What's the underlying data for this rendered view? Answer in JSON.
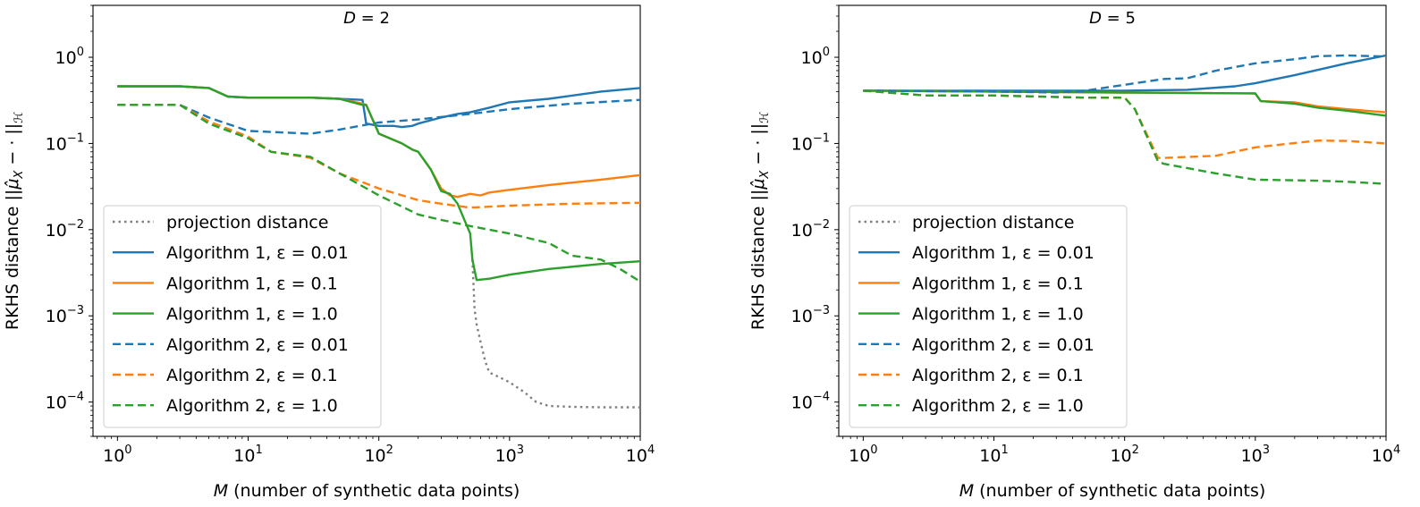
{
  "chart_data": [
    {
      "type": "line",
      "title": "D = 2",
      "title_var": "D",
      "title_value": "2",
      "xlabel": "M (number of synthetic data points)",
      "xlabel_var": "M",
      "xlabel_rest": " (number of synthetic data points)",
      "ylabel": "RKHS distance ||μ̂_X − ·||_ℋ",
      "ylabel_prefix": "RKHS distance ",
      "ylabel_math": "||μ̂",
      "ylabel_sub": "X",
      "ylabel_mid": " − · ||",
      "ylabel_sub2": "ℋ",
      "xscale": "log",
      "yscale": "log",
      "xlim": [
        0.65,
        10000
      ],
      "ylim": [
        4e-05,
        4
      ],
      "xticks": [
        {
          "v": 1,
          "base": "10",
          "exp": "0"
        },
        {
          "v": 10,
          "base": "10",
          "exp": "1"
        },
        {
          "v": 100,
          "base": "10",
          "exp": "2"
        },
        {
          "v": 1000,
          "base": "10",
          "exp": "3"
        },
        {
          "v": 10000,
          "base": "10",
          "exp": "4"
        }
      ],
      "yticks": [
        {
          "v": 0.0001,
          "base": "10",
          "exp": "−4"
        },
        {
          "v": 0.001,
          "base": "10",
          "exp": "−3"
        },
        {
          "v": 0.01,
          "base": "10",
          "exp": "−2"
        },
        {
          "v": 0.1,
          "base": "10",
          "exp": "−1"
        },
        {
          "v": 1,
          "base": "10",
          "exp": "0"
        }
      ],
      "grid": false,
      "legend_position": "lower-left",
      "series": [
        {
          "name": "projection distance",
          "color": "#808080",
          "dash": "dotted",
          "x": [
            520,
            540,
            560,
            600,
            650,
            700,
            800,
            1000,
            1300,
            1600,
            2000,
            3000,
            5000,
            10000
          ],
          "y": [
            0.0045,
            0.0012,
            0.0008,
            0.0005,
            0.0003,
            0.00022,
            0.0002,
            0.00017,
            0.00013,
            0.0001,
            9e-05,
            8.8e-05,
            8.7e-05,
            8.7e-05
          ]
        },
        {
          "name": "Algorithm 1, ε = 0.01",
          "color": "#1f77b4",
          "dash": "solid",
          "x": [
            1,
            3,
            5,
            7,
            10,
            20,
            30,
            50,
            75,
            80,
            100,
            130,
            150,
            180,
            200,
            300,
            400,
            500,
            700,
            1000,
            2000,
            5000,
            10000
          ],
          "y": [
            0.46,
            0.46,
            0.44,
            0.35,
            0.34,
            0.34,
            0.34,
            0.33,
            0.32,
            0.17,
            0.16,
            0.16,
            0.155,
            0.16,
            0.17,
            0.2,
            0.22,
            0.23,
            0.26,
            0.3,
            0.33,
            0.4,
            0.44
          ]
        },
        {
          "name": "Algorithm 1, ε = 0.1",
          "color": "#ff7f0e",
          "dash": "solid",
          "x": [
            1,
            3,
            5,
            7,
            10,
            20,
            30,
            50,
            75,
            80,
            100,
            150,
            180,
            200,
            250,
            300,
            350,
            400,
            500,
            600,
            700,
            1000,
            2000,
            5000,
            10000
          ],
          "y": [
            0.46,
            0.46,
            0.44,
            0.35,
            0.34,
            0.34,
            0.34,
            0.33,
            0.29,
            0.28,
            0.13,
            0.1,
            0.085,
            0.08,
            0.05,
            0.03,
            0.025,
            0.024,
            0.026,
            0.025,
            0.027,
            0.029,
            0.033,
            0.038,
            0.043
          ]
        },
        {
          "name": "Algorithm 1, ε = 1.0",
          "color": "#2ca02c",
          "dash": "solid",
          "x": [
            1,
            3,
            5,
            7,
            10,
            20,
            30,
            50,
            75,
            80,
            100,
            150,
            180,
            200,
            250,
            300,
            350,
            400,
            500,
            520,
            560,
            700,
            1000,
            2000,
            5000,
            10000
          ],
          "y": [
            0.46,
            0.46,
            0.44,
            0.35,
            0.34,
            0.34,
            0.34,
            0.33,
            0.28,
            0.28,
            0.13,
            0.1,
            0.085,
            0.08,
            0.05,
            0.028,
            0.026,
            0.02,
            0.009,
            0.0045,
            0.0026,
            0.0027,
            0.003,
            0.0035,
            0.004,
            0.0043
          ]
        },
        {
          "name": "Algorithm 2, ε = 0.01",
          "color": "#1f77b4",
          "dash": "dashed",
          "x": [
            1,
            3,
            5,
            10,
            30,
            50,
            100,
            200,
            500,
            1000,
            3000,
            10000
          ],
          "y": [
            0.28,
            0.28,
            0.2,
            0.14,
            0.13,
            0.145,
            0.175,
            0.19,
            0.22,
            0.25,
            0.29,
            0.32
          ]
        },
        {
          "name": "Algorithm 2, ε = 0.1",
          "color": "#ff7f0e",
          "dash": "dashed",
          "x": [
            1,
            3,
            5,
            10,
            15,
            30,
            50,
            100,
            200,
            300,
            500,
            1000,
            3000,
            10000
          ],
          "y": [
            0.28,
            0.28,
            0.18,
            0.12,
            0.08,
            0.068,
            0.045,
            0.03,
            0.022,
            0.02,
            0.018,
            0.019,
            0.02,
            0.0205
          ]
        },
        {
          "name": "Algorithm 2, ε = 1.0",
          "color": "#2ca02c",
          "dash": "dashed",
          "x": [
            1,
            3,
            5,
            10,
            15,
            30,
            50,
            100,
            200,
            300,
            500,
            1000,
            2000,
            3000,
            5000,
            7000,
            10000
          ],
          "y": [
            0.28,
            0.28,
            0.17,
            0.115,
            0.08,
            0.07,
            0.045,
            0.025,
            0.015,
            0.013,
            0.011,
            0.009,
            0.007,
            0.005,
            0.0045,
            0.0035,
            0.0025
          ]
        }
      ]
    },
    {
      "type": "line",
      "title": "D = 5",
      "title_var": "D",
      "title_value": "5",
      "xlabel": "M (number of synthetic data points)",
      "xlabel_var": "M",
      "xlabel_rest": " (number of synthetic data points)",
      "ylabel": "RKHS distance ||μ̂_X − ·||_ℋ",
      "ylabel_prefix": "RKHS distance ",
      "ylabel_math": "||μ̂",
      "ylabel_sub": "X",
      "ylabel_mid": " − · ||",
      "ylabel_sub2": "ℋ",
      "xscale": "log",
      "yscale": "log",
      "xlim": [
        0.65,
        10000
      ],
      "ylim": [
        4e-05,
        4
      ],
      "xticks": [
        {
          "v": 1,
          "base": "10",
          "exp": "0"
        },
        {
          "v": 10,
          "base": "10",
          "exp": "1"
        },
        {
          "v": 100,
          "base": "10",
          "exp": "2"
        },
        {
          "v": 1000,
          "base": "10",
          "exp": "3"
        },
        {
          "v": 10000,
          "base": "10",
          "exp": "4"
        }
      ],
      "yticks": [
        {
          "v": 0.0001,
          "base": "10",
          "exp": "−4"
        },
        {
          "v": 0.001,
          "base": "10",
          "exp": "−3"
        },
        {
          "v": 0.01,
          "base": "10",
          "exp": "−2"
        },
        {
          "v": 0.1,
          "base": "10",
          "exp": "−1"
        },
        {
          "v": 1,
          "base": "10",
          "exp": "0"
        }
      ],
      "grid": false,
      "legend_position": "lower-left",
      "series": [
        {
          "name": "projection distance",
          "color": "#808080",
          "dash": "dotted",
          "x": [],
          "y": []
        },
        {
          "name": "Algorithm 1, ε = 0.01",
          "color": "#1f77b4",
          "dash": "solid",
          "x": [
            1,
            10,
            100,
            300,
            700,
            1000,
            2000,
            5000,
            10000
          ],
          "y": [
            0.41,
            0.41,
            0.41,
            0.42,
            0.46,
            0.5,
            0.62,
            0.85,
            1.05
          ]
        },
        {
          "name": "Algorithm 1, ε = 0.1",
          "color": "#ff7f0e",
          "dash": "solid",
          "x": [
            1,
            10,
            100,
            1000,
            1100,
            2000,
            3000,
            5000,
            10000
          ],
          "y": [
            0.41,
            0.4,
            0.39,
            0.38,
            0.31,
            0.3,
            0.27,
            0.25,
            0.23
          ]
        },
        {
          "name": "Algorithm 1, ε = 1.0",
          "color": "#2ca02c",
          "dash": "solid",
          "x": [
            1,
            10,
            100,
            1000,
            1100,
            2000,
            3000,
            5000,
            10000
          ],
          "y": [
            0.41,
            0.4,
            0.39,
            0.38,
            0.31,
            0.29,
            0.26,
            0.24,
            0.21
          ]
        },
        {
          "name": "Algorithm 2, ε = 0.01",
          "color": "#1f77b4",
          "dash": "dashed",
          "x": [
            1,
            10,
            30,
            50,
            100,
            200,
            300,
            500,
            1000,
            2000,
            3000,
            5000,
            10000
          ],
          "y": [
            0.41,
            0.4,
            0.39,
            0.41,
            0.48,
            0.56,
            0.57,
            0.7,
            0.85,
            0.95,
            1.03,
            1.05,
            1.02
          ]
        },
        {
          "name": "Algorithm 2, ε = 0.1",
          "color": "#ff7f0e",
          "dash": "dashed",
          "x": [
            1,
            3,
            10,
            50,
            100,
            120,
            180,
            200,
            500,
            1000,
            3000,
            5000,
            10000
          ],
          "y": [
            0.41,
            0.36,
            0.36,
            0.34,
            0.34,
            0.25,
            0.068,
            0.068,
            0.072,
            0.09,
            0.108,
            0.107,
            0.1
          ]
        },
        {
          "name": "Algorithm 2, ε = 1.0",
          "color": "#2ca02c",
          "dash": "dashed",
          "x": [
            1,
            3,
            10,
            50,
            100,
            120,
            180,
            200,
            500,
            1000,
            3000,
            5000,
            10000
          ],
          "y": [
            0.41,
            0.36,
            0.36,
            0.34,
            0.34,
            0.25,
            0.062,
            0.058,
            0.045,
            0.038,
            0.037,
            0.036,
            0.034
          ]
        }
      ]
    }
  ]
}
